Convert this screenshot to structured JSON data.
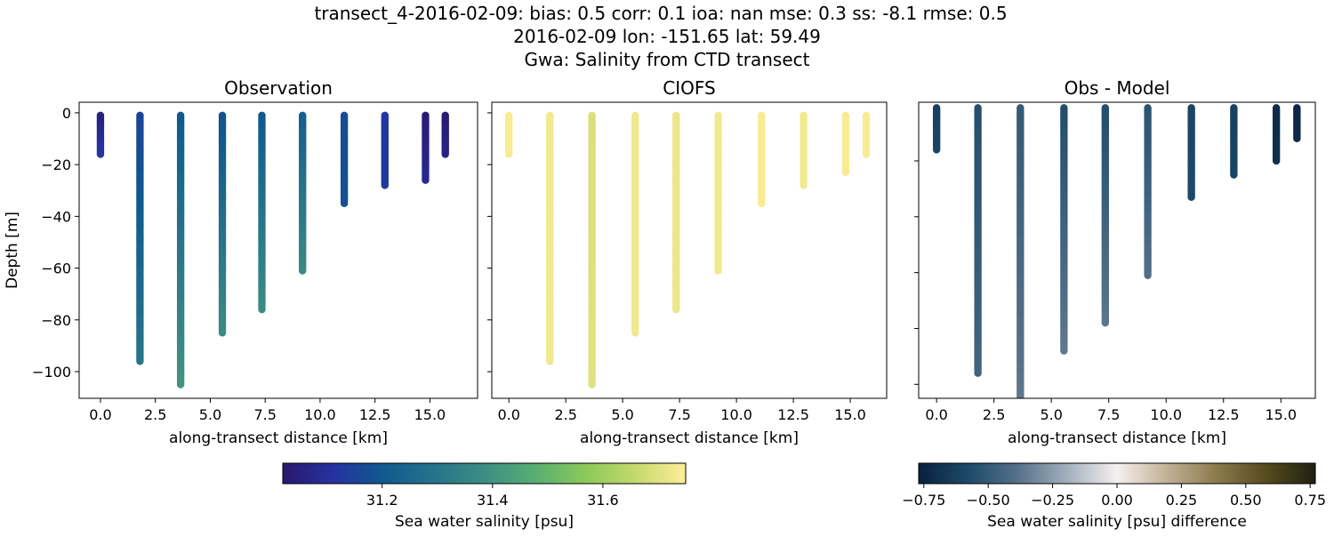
{
  "title_lines": [
    "transect_4-2016-02-09: bias: 0.5  corr: 0.1  ioa: nan  mse: 0.3  ss: -8.1  rmse: 0.5",
    "2016-02-09 lon: -151.65 lat: 59.49",
    "Gwa: Salinity from CTD transect"
  ],
  "chart_data": [
    {
      "type": "scatter",
      "title": "Observation",
      "xlabel": "along-transect distance [km]",
      "ylabel": "Depth [m]",
      "xlim": [
        -0.97,
        17.17
      ],
      "ylim": [
        -110.3,
        4.1
      ],
      "xticks": [
        0.0,
        2.5,
        5.0,
        7.5,
        10.0,
        12.5,
        15.0
      ],
      "xtick_labels": [
        "0.0",
        "2.5",
        "5.0",
        "7.5",
        "10.0",
        "12.5",
        "15.0"
      ],
      "yticks": [
        0,
        -20,
        -40,
        -60,
        -80,
        -100
      ],
      "ytick_labels": [
        "0",
        "−20",
        "−40",
        "−60",
        "−80",
        "−100"
      ],
      "colormap": "haline",
      "clim": [
        31.02,
        31.75
      ],
      "stations": [
        {
          "distance_km": 0.0,
          "max_depth_m": 16,
          "value_top": 31.05,
          "value_bottom": 31.12
        },
        {
          "distance_km": 1.8,
          "max_depth_m": 96,
          "value_top": 31.15,
          "value_bottom": 31.3
        },
        {
          "distance_km": 3.65,
          "max_depth_m": 105,
          "value_top": 31.2,
          "value_bottom": 31.4
        },
        {
          "distance_km": 5.55,
          "max_depth_m": 85,
          "value_top": 31.18,
          "value_bottom": 31.38
        },
        {
          "distance_km": 7.35,
          "max_depth_m": 76,
          "value_top": 31.2,
          "value_bottom": 31.38
        },
        {
          "distance_km": 9.2,
          "max_depth_m": 61,
          "value_top": 31.22,
          "value_bottom": 31.37
        },
        {
          "distance_km": 11.1,
          "max_depth_m": 35,
          "value_top": 31.17,
          "value_bottom": 31.18
        },
        {
          "distance_km": 12.95,
          "max_depth_m": 28,
          "value_top": 31.12,
          "value_bottom": 31.13
        },
        {
          "distance_km": 14.8,
          "max_depth_m": 26,
          "value_top": 31.03,
          "value_bottom": 31.08
        },
        {
          "distance_km": 15.7,
          "max_depth_m": 16,
          "value_top": 31.03,
          "value_bottom": 31.06
        }
      ]
    },
    {
      "type": "scatter",
      "title": "CIOFS",
      "xlabel": "along-transect distance [km]",
      "xlim": [
        -0.75,
        16.6
      ],
      "ylim": [
        -110.3,
        4.1
      ],
      "xticks": [
        0.0,
        2.5,
        5.0,
        7.5,
        10.0,
        12.5,
        15.0
      ],
      "xtick_labels": [
        "0.0",
        "2.5",
        "5.0",
        "7.5",
        "10.0",
        "12.5",
        "15.0"
      ],
      "yticks": [
        0,
        -20,
        -40,
        -60,
        -80,
        -100
      ],
      "colormap": "haline",
      "clim": [
        31.02,
        31.75
      ],
      "stations": [
        {
          "distance_km": 0.0,
          "max_depth_m": 16,
          "value_top": 31.74,
          "value_bottom": 31.74
        },
        {
          "distance_km": 1.8,
          "max_depth_m": 96,
          "value_top": 31.73,
          "value_bottom": 31.73
        },
        {
          "distance_km": 3.65,
          "max_depth_m": 105,
          "value_top": 31.69,
          "value_bottom": 31.7
        },
        {
          "distance_km": 5.55,
          "max_depth_m": 85,
          "value_top": 31.73,
          "value_bottom": 31.73
        },
        {
          "distance_km": 7.35,
          "max_depth_m": 76,
          "value_top": 31.72,
          "value_bottom": 31.72
        },
        {
          "distance_km": 9.2,
          "max_depth_m": 61,
          "value_top": 31.73,
          "value_bottom": 31.73
        },
        {
          "distance_km": 11.1,
          "max_depth_m": 35,
          "value_top": 31.74,
          "value_bottom": 31.74
        },
        {
          "distance_km": 12.95,
          "max_depth_m": 28,
          "value_top": 31.73,
          "value_bottom": 31.73
        },
        {
          "distance_km": 14.8,
          "max_depth_m": 23,
          "value_top": 31.74,
          "value_bottom": 31.74
        },
        {
          "distance_km": 15.7,
          "max_depth_m": 16,
          "value_top": 31.74,
          "value_bottom": 31.74
        }
      ]
    },
    {
      "type": "scatter",
      "title": "Obs - Model",
      "xlabel": "along-transect distance [km]",
      "xlim": [
        -0.78,
        16.5
      ],
      "ylim": [
        -105,
        1
      ],
      "xticks": [
        0.0,
        2.5,
        5.0,
        7.5,
        10.0,
        12.5,
        15.0
      ],
      "xtick_labels": [
        "0.0",
        "2.5",
        "5.0",
        "7.5",
        "10.0",
        "12.5",
        "15.0"
      ],
      "yticks": [
        -20,
        -40,
        -60,
        -80,
        -100
      ],
      "colormap": "diff",
      "clim": [
        -0.77,
        0.77
      ],
      "stations": [
        {
          "distance_km": 0.0,
          "max_depth_m": 16,
          "value_top": -0.62,
          "value_bottom": -0.6
        },
        {
          "distance_km": 1.8,
          "max_depth_m": 96,
          "value_top": -0.55,
          "value_bottom": -0.45
        },
        {
          "distance_km": 3.65,
          "max_depth_m": 110,
          "value_top": -0.5,
          "value_bottom": -0.36
        },
        {
          "distance_km": 5.55,
          "max_depth_m": 88,
          "value_top": -0.56,
          "value_bottom": -0.36
        },
        {
          "distance_km": 7.35,
          "max_depth_m": 78,
          "value_top": -0.56,
          "value_bottom": -0.37
        },
        {
          "distance_km": 9.2,
          "max_depth_m": 61,
          "value_top": -0.53,
          "value_bottom": -0.4
        },
        {
          "distance_km": 11.1,
          "max_depth_m": 33,
          "value_top": -0.6,
          "value_bottom": -0.58
        },
        {
          "distance_km": 12.95,
          "max_depth_m": 25,
          "value_top": -0.62,
          "value_bottom": -0.6
        },
        {
          "distance_km": 14.8,
          "max_depth_m": 20,
          "value_top": -0.72,
          "value_bottom": -0.7
        },
        {
          "distance_km": 15.7,
          "max_depth_m": 12,
          "value_top": -0.74,
          "value_bottom": -0.72
        }
      ]
    }
  ],
  "colorbars": [
    {
      "label": "Sea water salinity [psu]",
      "range": [
        31.02,
        31.75
      ],
      "ticks": [
        31.2,
        31.4,
        31.6
      ],
      "tick_labels": [
        "31.2",
        "31.4",
        "31.6"
      ],
      "colormap": "haline"
    },
    {
      "label": "Sea water salinity [psu] difference",
      "range": [
        -0.77,
        0.77
      ],
      "ticks": [
        -0.75,
        -0.5,
        -0.25,
        0,
        0.25,
        0.5,
        0.75
      ],
      "tick_labels": [
        "−0.75",
        "−0.50",
        "−0.25",
        "0.00",
        "0.25",
        "0.50",
        "0.75"
      ],
      "colormap": "diff"
    }
  ],
  "colormaps": {
    "haline": [
      "#2a186c",
      "#2532a0",
      "#0f5a8e",
      "#27738a",
      "#3c8d83",
      "#58ae72",
      "#8bc85a",
      "#c6d96b",
      "#fdee99"
    ],
    "diff": [
      "#08203e",
      "#1d4a69",
      "#56718a",
      "#a3b0bc",
      "#f5f0ee",
      "#c2b196",
      "#8c7a4c",
      "#574b1f",
      "#1f2110"
    ]
  }
}
